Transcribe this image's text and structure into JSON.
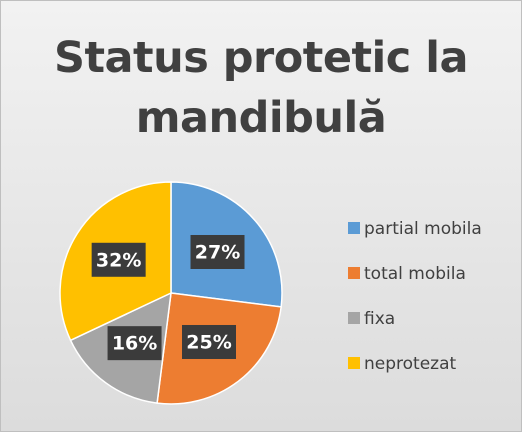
{
  "chart_data": {
    "type": "pie",
    "title": "Status protetic la mandibulă",
    "categories": [
      "partial mobila",
      "total mobila",
      "fixa",
      "neprotezat"
    ],
    "values": [
      27,
      25,
      16,
      32
    ],
    "value_labels": [
      "27%",
      "25%",
      "16%",
      "32%"
    ],
    "colors": [
      "#5b9bd5",
      "#ed7d31",
      "#a5a5a5",
      "#ffc000"
    ],
    "legend": "right"
  }
}
